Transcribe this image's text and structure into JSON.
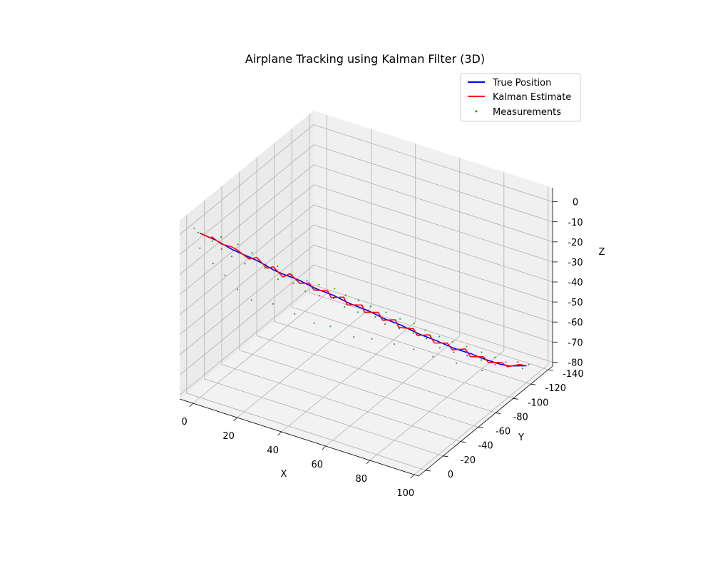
{
  "chart_data": {
    "type": "line",
    "title": "Airplane Tracking using Kalman Filter (3D)",
    "xlabel": "X",
    "ylabel": "Y",
    "zlabel": "Z",
    "xlim": [
      -6,
      102
    ],
    "ylim": [
      -145,
      8
    ],
    "zlim": [
      -82,
      7
    ],
    "xticks": [
      0,
      20,
      40,
      60,
      80,
      100
    ],
    "yticks": [
      0,
      -20,
      -40,
      -60,
      -80,
      -100,
      -120,
      -140
    ],
    "zticks": [
      0,
      -10,
      -20,
      -30,
      -40,
      -50,
      -60,
      -70,
      -80
    ],
    "grid": true,
    "legend_position": "top-right",
    "series": [
      {
        "name": "True Position",
        "color": "#0000ff",
        "kind": "line",
        "points": [
          [
            0,
            0,
            0
          ],
          [
            2.5,
            -3,
            -2
          ],
          [
            5,
            -6,
            -4
          ],
          [
            7.5,
            -9,
            -6.5
          ],
          [
            10,
            -12,
            -9
          ],
          [
            12.5,
            -15,
            -11
          ],
          [
            15,
            -18,
            -13
          ],
          [
            17.5,
            -21,
            -15
          ],
          [
            20,
            -24,
            -17.5
          ],
          [
            22.5,
            -27,
            -20
          ],
          [
            25,
            -30,
            -22
          ],
          [
            27.5,
            -33.5,
            -24
          ],
          [
            30,
            -37,
            -26
          ],
          [
            32.5,
            -40.5,
            -28.5
          ],
          [
            35,
            -44,
            -31
          ],
          [
            37.5,
            -47.5,
            -33
          ],
          [
            40,
            -51,
            -35
          ],
          [
            42.5,
            -54.5,
            -37.5
          ],
          [
            45,
            -58,
            -40
          ],
          [
            47.5,
            -61.5,
            -42
          ],
          [
            50,
            -65,
            -44
          ],
          [
            52.5,
            -68.5,
            -46.5
          ],
          [
            55,
            -72,
            -49
          ],
          [
            57.5,
            -75.5,
            -51
          ],
          [
            60,
            -79,
            -53
          ],
          [
            62.5,
            -82.5,
            -55.5
          ],
          [
            65,
            -86,
            -58
          ],
          [
            67.5,
            -89.5,
            -60
          ],
          [
            70,
            -93,
            -62
          ],
          [
            72.5,
            -97,
            -64.5
          ],
          [
            75,
            -101,
            -67
          ],
          [
            77.5,
            -105,
            -69
          ],
          [
            80,
            -109,
            -71
          ],
          [
            82.5,
            -113,
            -73.5
          ],
          [
            85,
            -117,
            -75.5
          ],
          [
            87.5,
            -121,
            -77.5
          ],
          [
            90,
            -125,
            -79
          ],
          [
            92.5,
            -129,
            -79.5
          ],
          [
            95,
            -133,
            -80
          ]
        ]
      },
      {
        "name": "Kalman Estimate",
        "color": "#ff0000",
        "kind": "line",
        "points": [
          [
            0,
            0,
            0
          ],
          [
            3.5,
            -3.5,
            -2.5
          ],
          [
            3,
            -6,
            -3
          ],
          [
            6.5,
            -8,
            -6
          ],
          [
            9.5,
            -12.5,
            -8
          ],
          [
            11,
            -15,
            -10
          ],
          [
            15.5,
            -17,
            -13.5
          ],
          [
            17,
            -22,
            -14
          ],
          [
            21,
            -23.5,
            -18.5
          ],
          [
            22,
            -28,
            -19
          ],
          [
            26,
            -29,
            -23
          ],
          [
            27,
            -34.5,
            -23
          ],
          [
            31,
            -36,
            -27
          ],
          [
            33,
            -41.5,
            -28
          ],
          [
            34.5,
            -43,
            -31.5
          ],
          [
            38.5,
            -48.5,
            -32.5
          ],
          [
            39.5,
            -50,
            -36
          ],
          [
            43,
            -55.5,
            -36.5
          ],
          [
            44,
            -57,
            -40.5
          ],
          [
            48.5,
            -62.5,
            -41
          ],
          [
            49,
            -64,
            -45
          ],
          [
            53,
            -69.5,
            -45.5
          ],
          [
            54.5,
            -71,
            -49.5
          ],
          [
            58,
            -76.5,
            -50
          ],
          [
            59,
            -78,
            -54
          ],
          [
            63.5,
            -83.5,
            -55
          ],
          [
            64.5,
            -85,
            -58.5
          ],
          [
            68,
            -90.5,
            -59
          ],
          [
            69.5,
            -92,
            -63
          ],
          [
            73,
            -98,
            -64
          ],
          [
            74.5,
            -100,
            -67.5
          ],
          [
            78,
            -106,
            -68
          ],
          [
            79.5,
            -108,
            -72
          ],
          [
            83,
            -114,
            -73
          ],
          [
            84.5,
            -116,
            -76
          ],
          [
            88,
            -122,
            -77
          ],
          [
            90,
            -124,
            -79
          ],
          [
            93,
            -130,
            -79
          ],
          [
            95,
            -133,
            -80
          ]
        ]
      },
      {
        "name": "Measurements",
        "color": "#008000",
        "kind": "scatter",
        "points": [
          [
            0,
            2,
            1
          ],
          [
            -3,
            -1,
            1
          ],
          [
            4,
            -4,
            -4
          ],
          [
            6,
            -9,
            -3
          ],
          [
            7,
            -7,
            -8
          ],
          [
            12,
            -13,
            -6
          ],
          [
            10,
            -11,
            -12
          ],
          [
            16,
            -19,
            -11
          ],
          [
            14,
            -16,
            -16
          ],
          [
            21,
            -22,
            -16
          ],
          [
            19,
            -26,
            -20
          ],
          [
            24,
            -28,
            -18
          ],
          [
            23,
            -31,
            -26
          ],
          [
            29,
            -32,
            -22
          ],
          [
            28,
            -36,
            -28
          ],
          [
            33,
            -39,
            -26
          ],
          [
            31,
            -42,
            -33
          ],
          [
            36,
            -45,
            -29
          ],
          [
            35,
            -48,
            -36
          ],
          [
            41,
            -50,
            -31
          ],
          [
            39,
            -54,
            -38
          ],
          [
            44,
            -55,
            -35
          ],
          [
            42,
            -59,
            -43
          ],
          [
            48,
            -60,
            -38
          ],
          [
            46,
            -64,
            -46
          ],
          [
            51,
            -66,
            -42
          ],
          [
            52,
            -69,
            -48
          ],
          [
            56,
            -71,
            -45
          ],
          [
            54,
            -75,
            -53
          ],
          [
            60,
            -77,
            -49
          ],
          [
            58,
            -81,
            -56
          ],
          [
            64,
            -83,
            -52
          ],
          [
            62,
            -87,
            -59
          ],
          [
            67,
            -88,
            -56
          ],
          [
            66,
            -92,
            -62
          ],
          [
            71,
            -94,
            -60
          ],
          [
            70,
            -97,
            -67
          ],
          [
            75,
            -99,
            -63
          ],
          [
            74,
            -103,
            -70
          ],
          [
            79,
            -105,
            -66
          ],
          [
            78,
            -108,
            -72
          ],
          [
            83,
            -112,
            -70
          ],
          [
            82,
            -114,
            -75
          ],
          [
            87,
            -117,
            -73
          ],
          [
            86,
            -120,
            -78
          ],
          [
            90,
            -122,
            -76
          ],
          [
            89,
            -126,
            -80
          ],
          [
            93,
            -128,
            -77
          ],
          [
            94,
            -131,
            -81
          ],
          [
            96,
            -133,
            -79
          ],
          [
            -2,
            -5,
            -10
          ],
          [
            2,
            -10,
            -18
          ],
          [
            5,
            -16,
            -25
          ],
          [
            9,
            -20,
            -32
          ],
          [
            13,
            -26,
            -38
          ],
          [
            20,
            -33,
            -40
          ],
          [
            27,
            -40,
            -45
          ],
          [
            33,
            -47,
            -50
          ],
          [
            38,
            -53,
            -52
          ],
          [
            45,
            -62,
            -58
          ],
          [
            50,
            -70,
            -60
          ],
          [
            57,
            -78,
            -63
          ],
          [
            63,
            -85,
            -66
          ],
          [
            69,
            -92,
            -70
          ],
          [
            76,
            -101,
            -74
          ],
          [
            84,
            -110,
            -78
          ]
        ]
      }
    ]
  }
}
